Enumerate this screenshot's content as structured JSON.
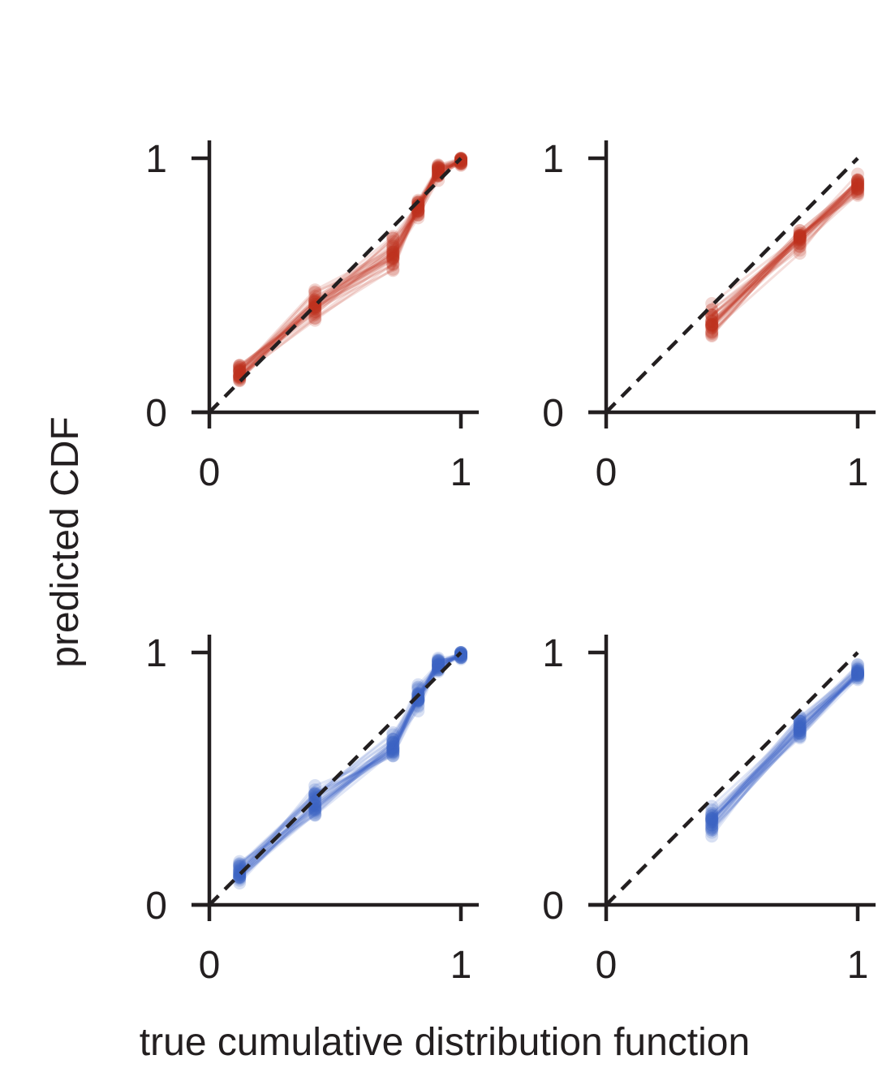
{
  "figure": {
    "ylabel": "predicted CDF",
    "xlabel": "true cumulative distribution function",
    "colors": {
      "red": "#c0301e",
      "blue": "#3e62c4",
      "axis": "#231f20",
      "diagonal": "#231f20"
    }
  },
  "chart_data": [
    {
      "type": "line",
      "panel": "top-left",
      "color": "#c0301e",
      "xlim": [
        0,
        1
      ],
      "ylim": [
        0,
        1
      ],
      "xticks": [
        "0",
        "1"
      ],
      "yticks": [
        "0",
        "1"
      ],
      "reference_line": {
        "style": "dashed",
        "points": [
          [
            0,
            0
          ],
          [
            1,
            1
          ]
        ]
      },
      "x": [
        0.12,
        0.42,
        0.73,
        0.83,
        0.91,
        1.0
      ],
      "y_mean": [
        0.15,
        0.42,
        0.62,
        0.8,
        0.95,
        0.99
      ],
      "y_spread": [
        0.07,
        0.08,
        0.09,
        0.06,
        0.04,
        0.02
      ],
      "n_series": 30
    },
    {
      "type": "line",
      "panel": "top-right",
      "color": "#c0301e",
      "xlim": [
        0,
        1
      ],
      "ylim": [
        0,
        1
      ],
      "xticks": [
        "0",
        "1"
      ],
      "yticks": [
        "0",
        "1"
      ],
      "reference_line": {
        "style": "dashed",
        "points": [
          [
            0,
            0
          ],
          [
            1,
            1
          ]
        ]
      },
      "x": [
        0.42,
        0.77,
        1.0
      ],
      "y_mean": [
        0.35,
        0.68,
        0.9
      ],
      "y_spread": [
        0.09,
        0.07,
        0.05
      ],
      "n_series": 30
    },
    {
      "type": "line",
      "panel": "bottom-left",
      "color": "#3e62c4",
      "xlim": [
        0,
        1
      ],
      "ylim": [
        0,
        1
      ],
      "xticks": [
        "0",
        "1"
      ],
      "yticks": [
        "0",
        "1"
      ],
      "reference_line": {
        "style": "dashed",
        "points": [
          [
            0,
            0
          ],
          [
            1,
            1
          ]
        ]
      },
      "x": [
        0.12,
        0.42,
        0.73,
        0.83,
        0.91,
        1.0
      ],
      "y_mean": [
        0.14,
        0.4,
        0.63,
        0.82,
        0.95,
        0.99
      ],
      "y_spread": [
        0.06,
        0.08,
        0.07,
        0.06,
        0.04,
        0.02
      ],
      "n_series": 30
    },
    {
      "type": "line",
      "panel": "bottom-right",
      "color": "#3e62c4",
      "xlim": [
        0,
        1
      ],
      "ylim": [
        0,
        1
      ],
      "xticks": [
        "0",
        "1"
      ],
      "yticks": [
        "0",
        "1"
      ],
      "reference_line": {
        "style": "dashed",
        "points": [
          [
            0,
            0
          ],
          [
            1,
            1
          ]
        ]
      },
      "x": [
        0.42,
        0.77,
        1.0
      ],
      "y_mean": [
        0.33,
        0.7,
        0.92
      ],
      "y_spread": [
        0.08,
        0.06,
        0.04
      ],
      "n_series": 30
    }
  ]
}
